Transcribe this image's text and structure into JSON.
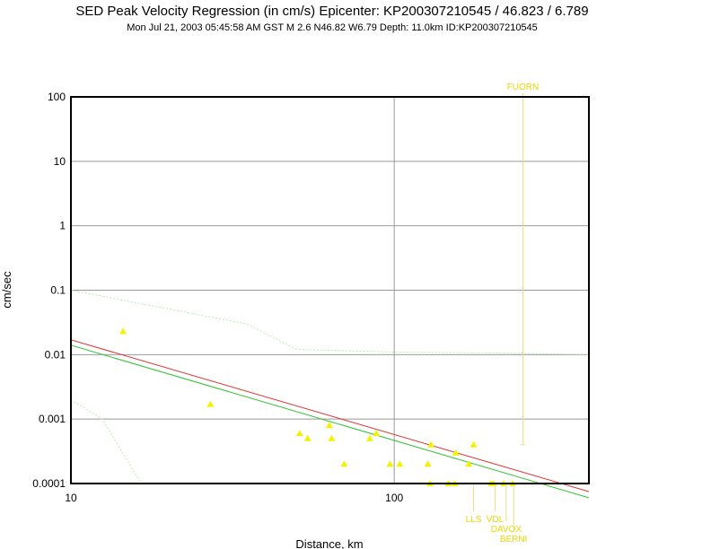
{
  "header": {
    "title": "SED Peak Velocity Regression (in cm/s) Epicenter: KP200307210545 / 46.823 / 6.789",
    "subtitle": "Mon Jul 21, 2003 05:45:58 AM GST   M 2.6   N46.82 W6.79   Depth: 11.0km   ID:KP200307210545"
  },
  "colors": {
    "points": "#f2f200",
    "regression_red": "#e03030",
    "regression_green": "#30c030",
    "bounds": "#b8e8b8",
    "grid": "#999999"
  },
  "chart_data": {
    "type": "scatter",
    "title": "SED Peak Velocity Regression (in cm/s) Epicenter: KP200307210545 / 46.823 / 6.789",
    "xlabel": "Distance, km",
    "ylabel": "cm/sec",
    "xscale": "log",
    "yscale": "log",
    "xlim": [
      10,
      400
    ],
    "ylim": [
      0.0001,
      100
    ],
    "grid": true,
    "x_ticks": [
      {
        "value": 10,
        "label": "10"
      },
      {
        "value": 100,
        "label": "100"
      }
    ],
    "y_ticks": [
      {
        "value": 100,
        "label": "100"
      },
      {
        "value": 10,
        "label": "10"
      },
      {
        "value": 1,
        "label": "1"
      },
      {
        "value": 0.1,
        "label": "0.1"
      },
      {
        "value": 0.01,
        "label": "0.01"
      },
      {
        "value": 0.001,
        "label": "0.001"
      },
      {
        "value": 0.0001,
        "label": "0.0001"
      }
    ],
    "points": [
      {
        "x": 14.5,
        "y": 0.023
      },
      {
        "x": 27,
        "y": 0.0017
      },
      {
        "x": 51,
        "y": 0.0006
      },
      {
        "x": 54,
        "y": 0.0005
      },
      {
        "x": 63,
        "y": 0.0008
      },
      {
        "x": 64,
        "y": 0.0005
      },
      {
        "x": 70,
        "y": 0.0002
      },
      {
        "x": 84,
        "y": 0.0005
      },
      {
        "x": 88,
        "y": 0.0006
      },
      {
        "x": 97,
        "y": 0.0002
      },
      {
        "x": 104,
        "y": 0.0002
      },
      {
        "x": 127,
        "y": 0.0002
      },
      {
        "x": 130,
        "y": 0.0004
      },
      {
        "x": 129,
        "y": 0.0001
      },
      {
        "x": 147,
        "y": 0.0001
      },
      {
        "x": 154,
        "y": 0.0001
      },
      {
        "x": 155,
        "y": 0.0003
      },
      {
        "x": 170,
        "y": 0.0002
      },
      {
        "x": 176,
        "y": 0.0004
      },
      {
        "x": 199,
        "y": 0.0001
      },
      {
        "x": 203,
        "y": 0.0001
      },
      {
        "x": 218,
        "y": 0.0001
      },
      {
        "x": 232,
        "y": 0.0001
      }
    ],
    "series": [
      {
        "style": "regression_red",
        "x": [
          10,
          400
        ],
        "y": [
          0.017,
          7.5e-05
        ]
      },
      {
        "style": "regression_green",
        "x": [
          10,
          400
        ],
        "y": [
          0.014,
          6e-05
        ]
      },
      {
        "style": "bounds",
        "x": [
          10,
          35,
          50,
          100,
          250,
          400
        ],
        "y": [
          0.1,
          0.03,
          0.012,
          0.011,
          0.0105,
          0.01
        ]
      },
      {
        "style": "bounds",
        "x": [
          10,
          12.5,
          16.5
        ],
        "y": [
          0.002,
          0.001,
          0.0001
        ]
      }
    ],
    "station_labels": [
      {
        "text": "FUORN",
        "x": 250,
        "y": 130,
        "y_dash_end": 0.0004
      },
      {
        "text": "LLS",
        "x": 176,
        "y": 0.0001,
        "row": 1
      },
      {
        "text": "VDL",
        "x": 205,
        "y": 0.0001,
        "row": 1
      },
      {
        "text": "DAVOX",
        "x": 222,
        "y": 0.0001,
        "row": 2
      },
      {
        "text": "BERNI",
        "x": 234,
        "y": 0.0001,
        "row": 3
      }
    ]
  }
}
